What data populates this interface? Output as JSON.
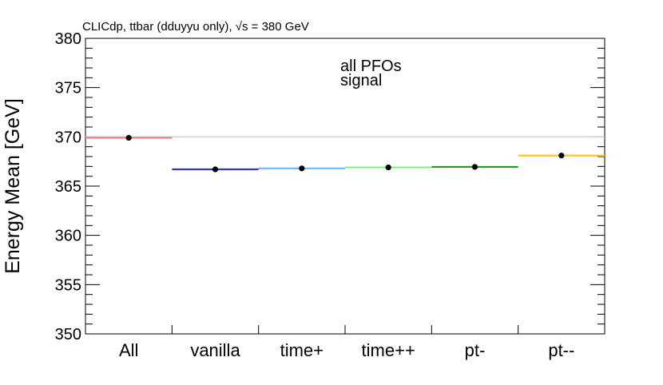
{
  "chart_data": {
    "type": "scatter",
    "title": "CLICdp, ttbar (dduyyu only), √s = 380 GeV",
    "ylabel": "Energy Mean [GeV]",
    "xlabel": "",
    "ylim": [
      350,
      380
    ],
    "yticks": [
      "350",
      "355",
      "360",
      "365",
      "370",
      "375",
      "380"
    ],
    "categories": [
      "All",
      "vanilla",
      "time+",
      "time++",
      "pt-",
      "pt--"
    ],
    "values": [
      369.9,
      366.7,
      366.8,
      366.9,
      366.95,
      368.1
    ],
    "bar_colors": [
      "#e88080",
      "#3333cc",
      "#66bbff",
      "#88ee88",
      "#229922",
      "#ffcc00"
    ],
    "reference_line": 370,
    "reference_color": "#cccccc",
    "legend": [
      "all PFOs",
      "signal"
    ],
    "legend_placement": "top-center",
    "grid": false
  }
}
